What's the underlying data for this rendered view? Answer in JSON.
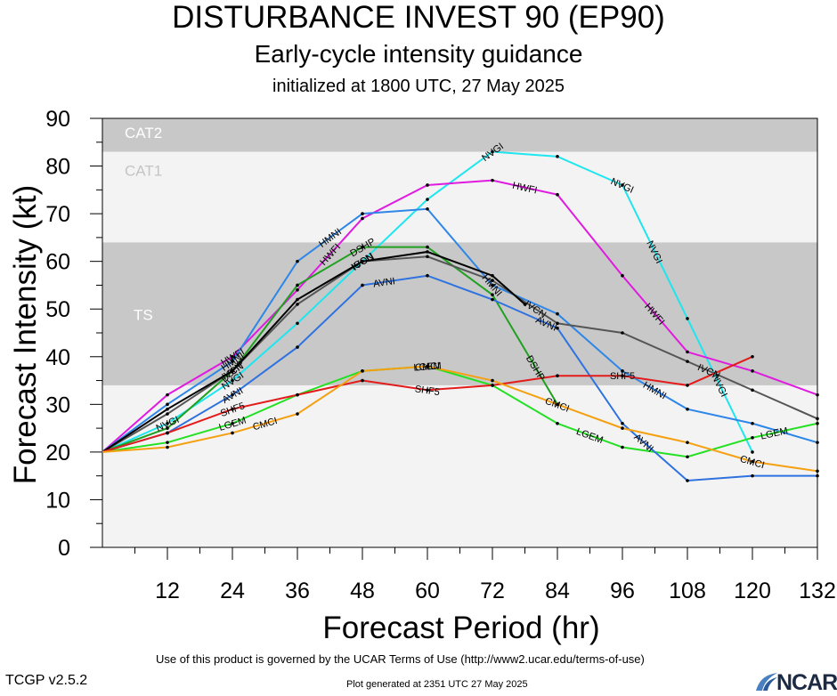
{
  "header": {
    "title": "DISTURBANCE INVEST 90 (EP90)",
    "subtitle": "Early-cycle intensity guidance",
    "init": "initialized at 1800 UTC, 27 May 2025"
  },
  "footer": {
    "terms": "Use of this product is governed by the UCAR Terms of Use (http://www2.ucar.edu/terms-of-use)",
    "version": "TCGP v2.5.2",
    "generated": "Plot generated at 2351 UTC   27 May 2025",
    "logo_text": "NCAR"
  },
  "chart_data": {
    "type": "line",
    "xlabel": "Forecast Period (hr)",
    "ylabel": "Forecast Intensity (kt)",
    "xlim": [
      0,
      132
    ],
    "ylim": [
      0,
      90
    ],
    "xticks": [
      12,
      24,
      36,
      48,
      60,
      72,
      84,
      96,
      108,
      120,
      132
    ],
    "yticks": [
      0,
      10,
      20,
      30,
      40,
      50,
      60,
      70,
      80,
      90
    ],
    "bands": [
      {
        "name": "TS",
        "from": 34,
        "to": 64,
        "color": "#c8c8c8"
      },
      {
        "name": "CAT1",
        "from": 64,
        "to": 83,
        "color": "#f3f3f3"
      },
      {
        "name": "CAT2",
        "from": 83,
        "to": 90,
        "color": "#c8c8c8"
      }
    ],
    "below_band_color": "#f3f3f3",
    "series": [
      {
        "name": "NVGI",
        "color": "#1ee6ef",
        "label_x": [
          12,
          24,
          72,
          96,
          102,
          114
        ],
        "x": [
          0,
          12,
          24,
          36,
          48,
          60,
          72,
          84,
          96,
          108,
          120
        ],
        "y": [
          20,
          26,
          35,
          47,
          60,
          73,
          83,
          82,
          76,
          48,
          20
        ]
      },
      {
        "name": "HWFI",
        "color": "#e01be0",
        "label_x": [
          24,
          42,
          78,
          102
        ],
        "x": [
          0,
          12,
          24,
          36,
          48,
          60,
          72,
          84,
          96,
          108,
          120,
          132
        ],
        "y": [
          20,
          32,
          40,
          54,
          69,
          76,
          77,
          74,
          57,
          41,
          37,
          32
        ]
      },
      {
        "name": "HMNI",
        "color": "#2d86e8",
        "label_x": [
          24,
          42,
          72,
          102
        ],
        "x": [
          0,
          12,
          24,
          36,
          48,
          60,
          72,
          84,
          96,
          108,
          120,
          132
        ],
        "y": [
          20,
          30,
          39,
          60,
          70,
          71,
          55,
          49,
          37,
          29,
          26,
          22
        ]
      },
      {
        "name": "DSHP",
        "color": "#20a020",
        "label_x": [
          24,
          48,
          80
        ],
        "x": [
          0,
          12,
          24,
          36,
          48,
          60,
          72,
          84
        ],
        "y": [
          20,
          25,
          37,
          55,
          63,
          63,
          53,
          30
        ]
      },
      {
        "name": "LGEM",
        "color": "#22e022",
        "label_x": [
          24,
          60,
          90,
          124
        ],
        "x": [
          0,
          12,
          24,
          36,
          48,
          60,
          72,
          84,
          96,
          108,
          120,
          132
        ],
        "y": [
          20,
          22,
          26,
          32,
          37,
          38,
          34,
          26,
          21,
          19,
          23,
          26
        ]
      },
      {
        "name": "IVCN",
        "color": "#555555",
        "label_x": [
          24,
          48,
          80,
          112
        ],
        "x": [
          0,
          12,
          24,
          36,
          48,
          60,
          72,
          84,
          96,
          108,
          120,
          132
        ],
        "y": [
          20,
          28,
          37,
          51,
          60,
          61,
          56,
          47,
          45,
          39,
          33,
          27
        ]
      },
      {
        "name": "ICON",
        "color": "#000000",
        "label_x": [
          48,
          80
        ],
        "x": [
          0,
          12,
          24,
          36,
          48,
          60,
          72,
          78
        ],
        "y": [
          20,
          29,
          37,
          52,
          60,
          62,
          57,
          51
        ]
      },
      {
        "name": "AVNI",
        "color": "#2e72e0",
        "label_x": [
          24,
          52,
          82,
          100
        ],
        "x": [
          0,
          12,
          24,
          36,
          48,
          60,
          72,
          84,
          96,
          108,
          120,
          132
        ],
        "y": [
          20,
          24,
          32,
          42,
          55,
          57,
          52,
          46,
          26,
          14,
          15,
          15
        ]
      },
      {
        "name": "SHF5",
        "color": "#e31b1b",
        "label_x": [
          24,
          60,
          96
        ],
        "x": [
          0,
          12,
          24,
          36,
          48,
          60,
          72,
          84,
          96,
          108,
          120
        ],
        "y": [
          20,
          24,
          29,
          32,
          35,
          33,
          34,
          36,
          36,
          34,
          40
        ]
      },
      {
        "name": "CMCI",
        "color": "#f5a010",
        "label_x": [
          30,
          60,
          84,
          120
        ],
        "x": [
          0,
          12,
          24,
          36,
          48,
          60,
          72,
          84,
          96,
          108,
          120,
          132
        ],
        "y": [
          20,
          21,
          24,
          28,
          37,
          38,
          35,
          30,
          25,
          22,
          18,
          16
        ]
      }
    ]
  }
}
